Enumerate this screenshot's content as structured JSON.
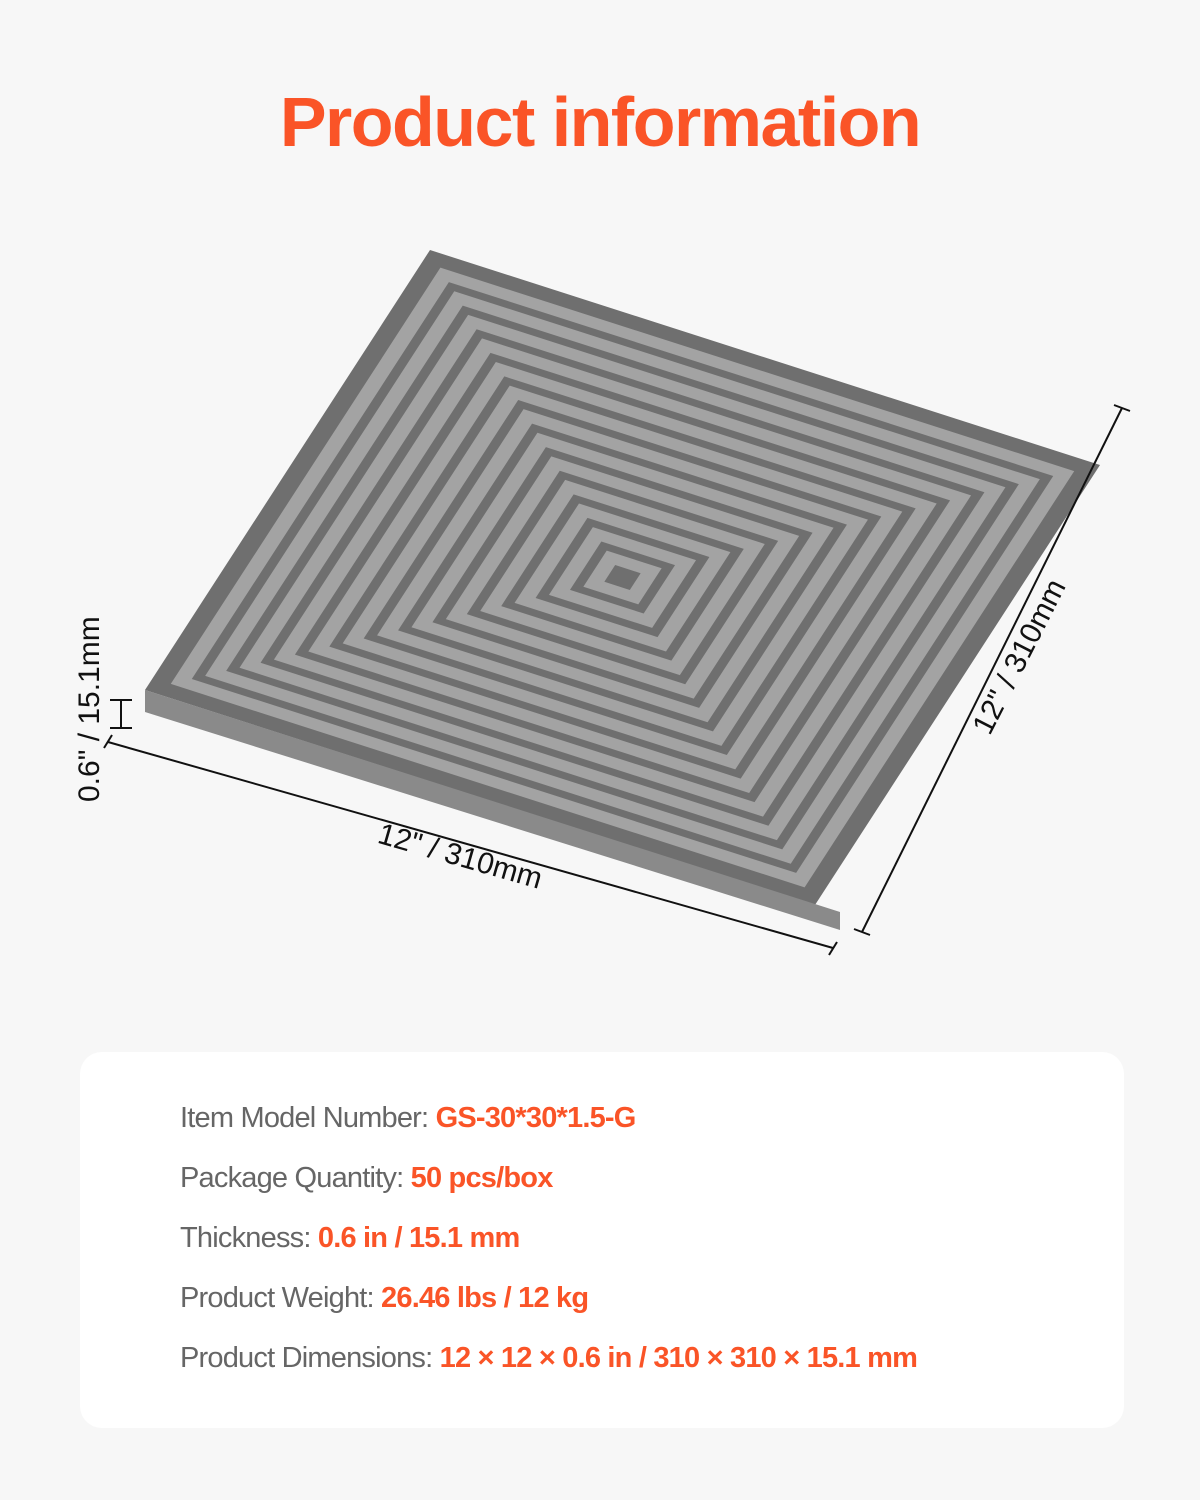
{
  "title": "Product information",
  "dimensions": {
    "thickness": "0.6\" / 15.1mm",
    "length": "12\" / 310mm",
    "width": "12\" / 310mm"
  },
  "specs": [
    {
      "label": "Item Model Number: ",
      "value": "GS-30*30*1.5-G"
    },
    {
      "label": "Package Quantity: ",
      "value": "50 pcs/box"
    },
    {
      "label": "Thickness: ",
      "value": "0.6 in / 15.1 mm"
    },
    {
      "label": "Product Weight: ",
      "value": "26.46 lbs / 12 kg"
    },
    {
      "label": "Product Dimensions: ",
      "value": "12 × 12 × 0.6 in / 310 × 310 × 15.1 mm"
    }
  ],
  "colors": {
    "accent": "#fa5427",
    "tile": "#9a9a9a",
    "background": "#f7f7f7"
  }
}
